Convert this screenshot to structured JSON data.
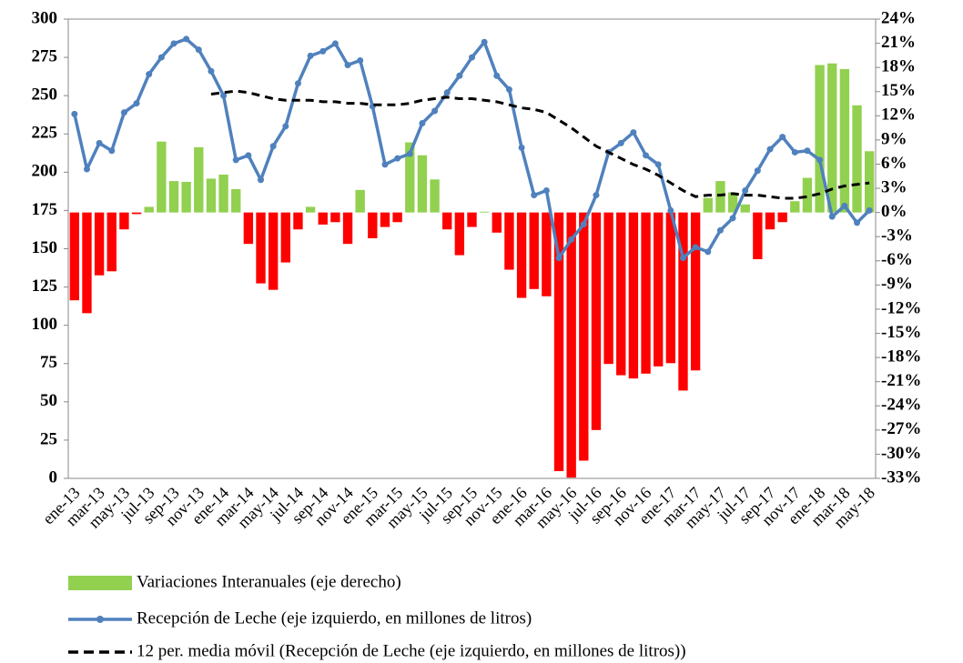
{
  "chart_data": {
    "type": "bar-line",
    "categories": [
      "ene-13",
      null,
      "mar-13",
      null,
      "may-13",
      null,
      "jul-13",
      null,
      "sep-13",
      null,
      "nov-13",
      null,
      "ene-14",
      null,
      "mar-14",
      null,
      "may-14",
      null,
      "jul-14",
      null,
      "sep-14",
      null,
      "nov-14",
      null,
      "ene-15",
      null,
      "mar-15",
      null,
      "may-15",
      null,
      "jul-15",
      null,
      "sep-15",
      null,
      "nov-15",
      null,
      "ene-16",
      null,
      "mar-16",
      null,
      "may-16",
      null,
      "jul-16",
      null,
      "sep-16",
      null,
      "nov-16",
      null,
      "ene-17",
      null,
      "mar-17",
      null,
      "may-17",
      null,
      "jul-17",
      null,
      "sep-17",
      null,
      "nov-17",
      null,
      "ene-18",
      null,
      "mar-18",
      null,
      "may-18"
    ],
    "series": [
      {
        "name": "Variaciones Interanuales (eje derecho)",
        "kind": "bar",
        "axis": "y2",
        "color": "#92d050",
        "negative_color": "#ff0000",
        "values": [
          -10.9,
          -12.5,
          -7.8,
          -7.3,
          -2.1,
          -0.2,
          0.7,
          8.8,
          3.9,
          3.8,
          8.1,
          4.2,
          4.7,
          2.9,
          -3.9,
          -8.8,
          -9.6,
          -6.2,
          -2.1,
          0.7,
          -1.5,
          -1.2,
          -3.9,
          2.8,
          -3.2,
          -1.8,
          -1.2,
          8.7,
          7.1,
          4.1,
          -2.1,
          -5.3,
          -1.8,
          0.1,
          -2.5,
          -7.1,
          -10.6,
          -9.5,
          -10.4,
          -32.1,
          -32.9,
          -30.8,
          -27.0,
          -18.8,
          -20.2,
          -20.6,
          -20.0,
          -19.1,
          -18.7,
          -22.1,
          -19.6,
          1.8,
          3.9,
          2.5,
          1.0,
          -5.8,
          -2.1,
          -1.2,
          1.4,
          4.3,
          18.3,
          18.5,
          17.8,
          13.3,
          7.6
        ]
      },
      {
        "name": "Recepción de Leche (eje izquierdo, en millones de litros)",
        "kind": "line",
        "axis": "y",
        "color": "#4f81bd",
        "markers": true,
        "values": [
          238,
          202,
          219,
          214,
          239,
          245,
          264,
          275,
          284,
          287,
          280,
          266,
          250,
          208,
          211,
          195,
          217,
          230,
          258,
          276,
          279,
          284,
          270,
          273,
          243,
          205,
          209,
          212,
          232,
          240,
          252,
          263,
          275,
          285,
          263,
          254,
          216,
          185,
          188,
          144,
          156,
          166,
          185,
          213,
          219,
          226,
          211,
          205,
          175,
          144,
          151,
          148,
          162,
          170,
          188,
          201,
          215,
          223,
          213,
          214,
          208,
          171,
          178,
          167,
          175
        ]
      },
      {
        "name": "12 per. media móvil (Recepción de Leche (eje izquierdo, en millones de litros))",
        "kind": "line",
        "axis": "y",
        "color": "#000000",
        "dashed": true,
        "values": [
          null,
          null,
          null,
          null,
          null,
          null,
          null,
          null,
          null,
          null,
          null,
          251,
          252,
          253,
          252,
          250,
          248,
          247,
          247,
          247,
          246,
          246,
          245,
          245,
          244,
          244,
          244,
          245,
          247,
          248,
          249,
          248,
          248,
          247,
          246,
          244,
          242,
          241,
          239,
          234,
          229,
          223,
          217,
          213,
          209,
          205,
          202,
          198,
          193,
          188,
          184,
          185,
          185,
          186,
          185,
          185,
          184,
          183,
          183,
          184,
          186,
          189,
          191,
          192,
          193
        ]
      }
    ],
    "ylim": [
      0,
      300
    ],
    "yticks": [
      0,
      25,
      50,
      75,
      100,
      125,
      150,
      175,
      200,
      225,
      250,
      275,
      300
    ],
    "y2lim": [
      -33,
      24
    ],
    "y2ticks": [
      {
        "value": 24,
        "label": "24%"
      },
      {
        "value": 21,
        "label": "21%"
      },
      {
        "value": 18,
        "label": "18%"
      },
      {
        "value": 15,
        "label": "15%"
      },
      {
        "value": 12,
        "label": "12%"
      },
      {
        "value": 9,
        "label": "9%"
      },
      {
        "value": 6,
        "label": "6%"
      },
      {
        "value": 3,
        "label": "3%"
      },
      {
        "value": 0,
        "label": "0%"
      },
      {
        "value": -3,
        "label": "-3%"
      },
      {
        "value": -6,
        "label": "-6%"
      },
      {
        "value": -9,
        "label": "-9%"
      },
      {
        "value": -12,
        "label": "-12%"
      },
      {
        "value": -15,
        "label": "-15%"
      },
      {
        "value": -18,
        "label": "-18%"
      },
      {
        "value": -21,
        "label": "-21%"
      },
      {
        "value": -24,
        "label": "-24%"
      },
      {
        "value": -27,
        "label": "-27%"
      },
      {
        "value": -30,
        "label": "-30%"
      },
      {
        "value": -33,
        "label": "-33%"
      }
    ],
    "legend": "bottom"
  }
}
